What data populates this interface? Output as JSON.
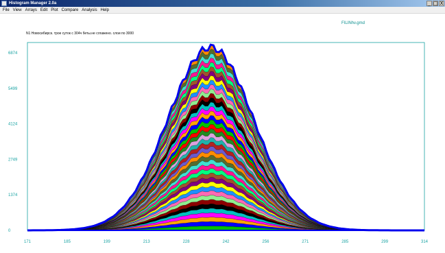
{
  "window": {
    "title": "Histogram Manager 2.0a",
    "controls": [
      "_",
      "□",
      "X"
    ]
  },
  "menu": [
    "File",
    "View",
    "Arrays",
    "Edit",
    "Plot",
    "Compare",
    "Analysis",
    "Help"
  ],
  "plot": {
    "file_name": "FILINhv.gmd",
    "subtitle": "N1 Новосибирск. трое суток с 304ч беты.не сглажено. слои по 3000"
  },
  "chart_data": {
    "type": "area",
    "x_ticks": [
      "171",
      "185",
      "199",
      "213",
      "228",
      "242",
      "256",
      "271",
      "285",
      "299",
      "314"
    ],
    "y_ticks": [
      "0",
      "1374",
      "2749",
      "4124",
      "5499",
      "6874"
    ],
    "xlim": [
      171,
      314
    ],
    "ylim": [
      0,
      6874
    ],
    "layers": 42,
    "peak": {
      "x": 237,
      "y": 6700
    },
    "envelope_color": "#0000ee",
    "axis_color": "#19a3a3",
    "layer_colors": [
      "#ff0000",
      "#00c000",
      "#0000ff",
      "#ffa500",
      "#ff00ff",
      "#00c0c0",
      "#000000",
      "#8b0000",
      "#90ee90",
      "#ff69b4",
      "#1e90ff",
      "#ffff00",
      "#800080",
      "#a0522d",
      "#00ff7f",
      "#ff1493",
      "#40e0d0",
      "#556b2f",
      "#ff8c00",
      "#6a5acd",
      "#b22222",
      "#20b2aa",
      "#dda0dd",
      "#228b22"
    ]
  }
}
